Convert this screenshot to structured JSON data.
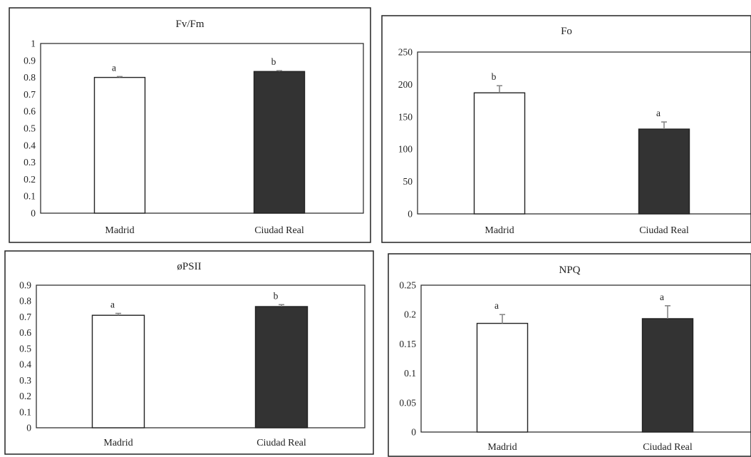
{
  "chart_data": [
    {
      "type": "bar",
      "title": "Fv/Fm",
      "categories": [
        "Madrid",
        "Ciudad Real"
      ],
      "values": [
        0.8,
        0.835
      ],
      "errors": [
        0.005,
        0.005
      ],
      "significance": [
        "a",
        "b"
      ],
      "bar_colors": [
        "#ffffff",
        "#333333"
      ],
      "ylim": [
        0,
        1
      ],
      "yticks": [
        "0",
        "0.1",
        "0.2",
        "0.3",
        "0.4",
        "0.5",
        "0.6",
        "0.7",
        "0.8",
        "0.9",
        "1"
      ],
      "grid": false
    },
    {
      "type": "bar",
      "title": "Fo",
      "categories": [
        "Madrid",
        "Ciudad Real"
      ],
      "values": [
        187,
        131
      ],
      "errors": [
        11,
        11
      ],
      "significance": [
        "b",
        "a"
      ],
      "bar_colors": [
        "#ffffff",
        "#333333"
      ],
      "ylim": [
        0,
        250
      ],
      "yticks": [
        "0",
        "50",
        "100",
        "150",
        "200",
        "250"
      ],
      "grid": false
    },
    {
      "type": "bar",
      "title": "øPSII",
      "categories": [
        "Madrid",
        "Ciudad Real"
      ],
      "values": [
        0.71,
        0.765
      ],
      "errors": [
        0.012,
        0.012
      ],
      "significance": [
        "a",
        "b"
      ],
      "bar_colors": [
        "#ffffff",
        "#333333"
      ],
      "ylim": [
        0,
        0.9
      ],
      "yticks": [
        "0",
        "0.1",
        "0.2",
        "0.3",
        "0.4",
        "0.5",
        "0.6",
        "0.7",
        "0.8",
        "0.9"
      ],
      "grid": false
    },
    {
      "type": "bar",
      "title": "NPQ",
      "categories": [
        "Madrid",
        "Ciudad Real"
      ],
      "values": [
        0.185,
        0.193
      ],
      "errors": [
        0.015,
        0.022
      ],
      "significance": [
        "a",
        "a"
      ],
      "bar_colors": [
        "#ffffff",
        "#333333"
      ],
      "ylim": [
        0,
        0.25
      ],
      "yticks": [
        "0",
        "0.05",
        "0.1",
        "0.15",
        "0.2",
        "0.25"
      ],
      "grid": false
    }
  ]
}
